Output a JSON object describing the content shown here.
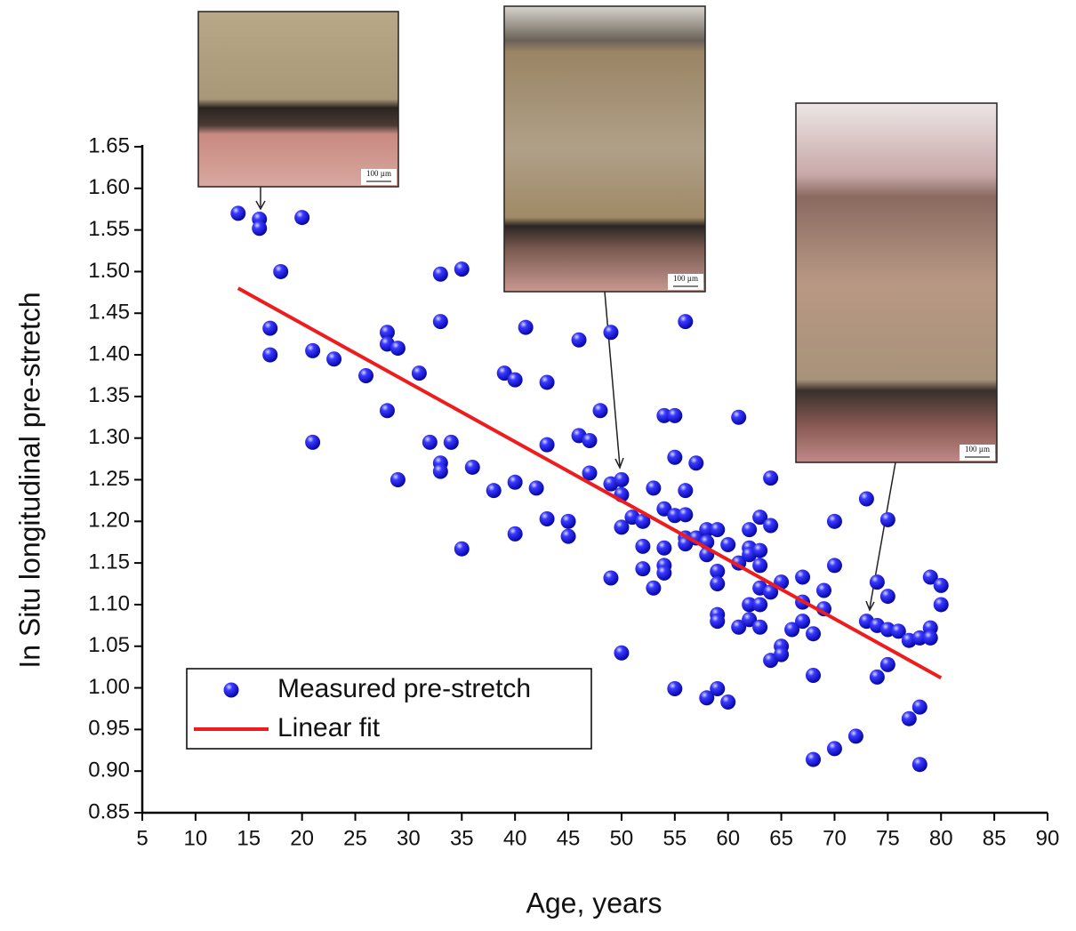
{
  "chart_data": {
    "type": "scatter",
    "x_label": "Age, years",
    "y_label": "In Situ longitudinal pre-stretch",
    "xlim": [
      5,
      90
    ],
    "ylim": [
      0.85,
      1.65
    ],
    "xticks": [
      5,
      10,
      15,
      20,
      25,
      30,
      35,
      40,
      45,
      50,
      55,
      60,
      65,
      70,
      75,
      80,
      85,
      90
    ],
    "yticks": [
      0.85,
      {
        "value": 0.9,
        "label": "0.90"
      },
      0.95,
      {
        "value": 1.0,
        "label": "1.00"
      },
      1.05,
      {
        "value": 1.1,
        "label": "1.10"
      },
      1.15,
      {
        "value": 1.2,
        "label": "1.20"
      },
      1.25,
      {
        "value": 1.3,
        "label": "1.30"
      },
      1.35,
      {
        "value": 1.4,
        "label": "1.40"
      },
      1.45,
      {
        "value": 1.5,
        "label": "1.50"
      },
      1.55,
      {
        "value": 1.6,
        "label": "1.60"
      },
      1.65
    ],
    "legend": "lower left",
    "inset_scale_labels": [
      "100 µm",
      "100 µm",
      "100 µm"
    ],
    "series": [
      {
        "name": "Measured pre-stretch",
        "color": "#1a1aff",
        "x": [
          14,
          16,
          16,
          20,
          18,
          17,
          17,
          21,
          23,
          21,
          26,
          28,
          28,
          29,
          28,
          29,
          31,
          32,
          33,
          33,
          33,
          33,
          34,
          35,
          35,
          36,
          38,
          39,
          40,
          40,
          40,
          41,
          42,
          43,
          43,
          43,
          45,
          45,
          46,
          46,
          47,
          47,
          48,
          49,
          49,
          49,
          50,
          50,
          50,
          50,
          51,
          52,
          52,
          52,
          53,
          53,
          54,
          54,
          54,
          54,
          54,
          55,
          55,
          55,
          55,
          56,
          56,
          56,
          56,
          56,
          57,
          57,
          58,
          58,
          58,
          58,
          59,
          59,
          59,
          59,
          59,
          59,
          60,
          60,
          61,
          61,
          61,
          62,
          62,
          62,
          62,
          62,
          63,
          63,
          63,
          63,
          63,
          63,
          64,
          64,
          64,
          64,
          65,
          65,
          65,
          66,
          67,
          67,
          67,
          68,
          68,
          68,
          69,
          69,
          70,
          70,
          70,
          72,
          73,
          73,
          74,
          74,
          74,
          75,
          75,
          75,
          75,
          76,
          77,
          77,
          78,
          78,
          78,
          79,
          79,
          79,
          80,
          80
        ],
        "values": [
          1.57,
          1.563,
          1.552,
          1.565,
          1.5,
          1.432,
          1.4,
          1.405,
          1.395,
          1.295,
          1.375,
          1.427,
          1.413,
          1.408,
          1.333,
          1.25,
          1.378,
          1.295,
          1.497,
          1.44,
          1.27,
          1.26,
          1.295,
          1.503,
          1.167,
          1.265,
          1.237,
          1.378,
          1.37,
          1.247,
          1.185,
          1.433,
          1.24,
          1.367,
          1.292,
          1.203,
          1.2,
          1.182,
          1.418,
          1.303,
          1.297,
          1.258,
          1.333,
          1.427,
          1.245,
          1.132,
          1.25,
          1.232,
          1.193,
          1.042,
          1.205,
          1.2,
          1.17,
          1.143,
          1.24,
          1.12,
          1.327,
          1.215,
          1.168,
          1.147,
          1.138,
          1.327,
          1.277,
          1.207,
          0.999,
          1.44,
          1.237,
          1.208,
          1.18,
          1.173,
          1.27,
          1.18,
          1.19,
          1.175,
          1.16,
          0.988,
          1.19,
          1.14,
          1.125,
          1.088,
          1.08,
          0.999,
          1.172,
          0.983,
          1.325,
          1.15,
          1.073,
          1.19,
          1.168,
          1.16,
          1.1,
          1.082,
          1.205,
          1.165,
          1.147,
          1.12,
          1.1,
          1.073,
          1.252,
          1.195,
          1.115,
          1.033,
          1.127,
          1.05,
          1.04,
          1.07,
          1.133,
          1.103,
          1.08,
          1.065,
          1.015,
          0.914,
          1.117,
          1.095,
          1.2,
          1.147,
          0.927,
          0.942,
          1.227,
          1.08,
          1.127,
          1.075,
          1.013,
          1.202,
          1.11,
          1.07,
          1.028,
          1.068,
          1.057,
          0.963,
          1.06,
          0.977,
          0.908,
          1.133,
          1.072,
          1.06,
          1.123,
          1.1
        ]
      },
      {
        "name": "Linear fit",
        "type": "line",
        "color": "#ee1c1c",
        "x": [
          14,
          80
        ],
        "values": [
          1.48,
          1.012
        ]
      }
    ]
  }
}
